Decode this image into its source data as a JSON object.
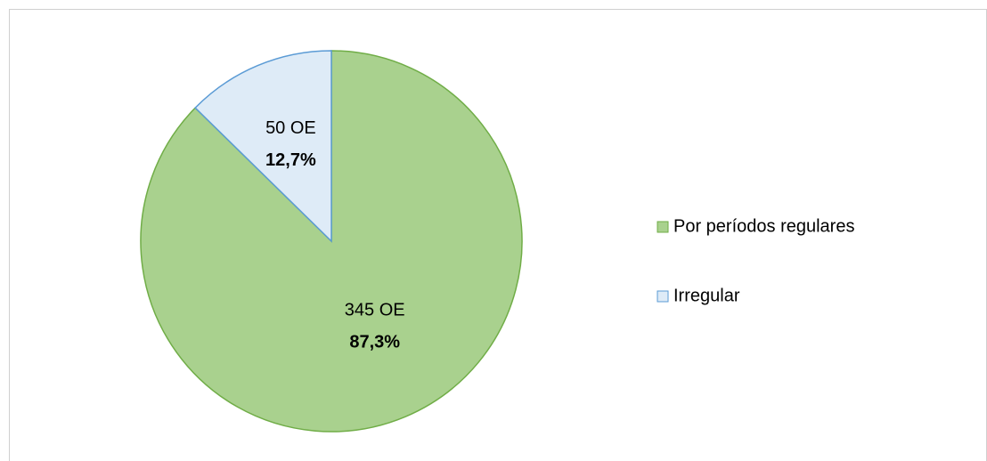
{
  "chart_data": {
    "type": "pie",
    "categories": [
      "Por períodos regulares",
      "Irregular"
    ],
    "values": [
      345,
      50
    ],
    "value_labels": [
      "345 OE",
      "50 OE"
    ],
    "percentages": [
      87.3,
      12.7
    ],
    "percentage_labels": [
      "87,3%",
      "12,7%"
    ],
    "colors": [
      "#a9d18e",
      "#deebf7"
    ],
    "stroke_colors": [
      "#70ad47",
      "#5b9bd5"
    ],
    "legend": "right"
  }
}
